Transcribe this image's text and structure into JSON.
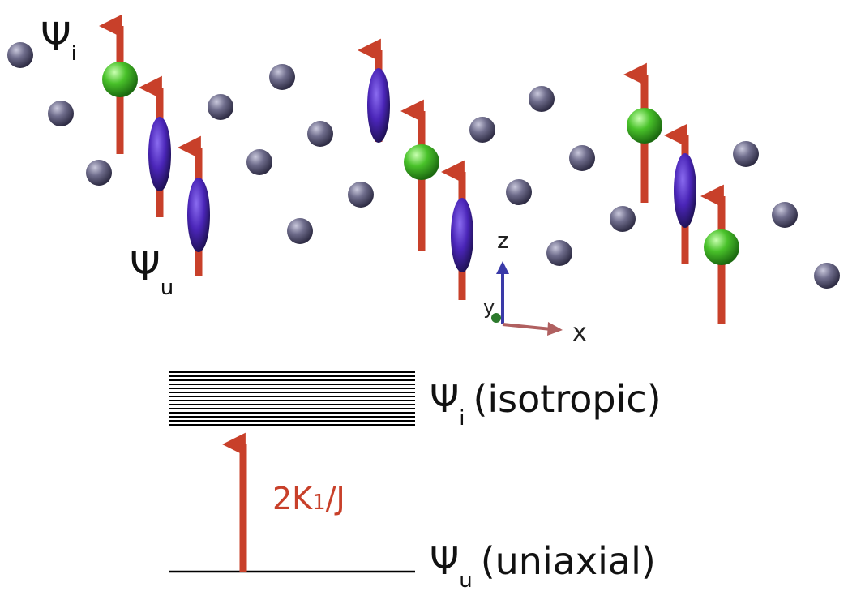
{
  "lattice_labels": [
    {
      "symbol": "Ψ",
      "subscript": "i"
    },
    {
      "symbol": "Ψ",
      "subscript": "u"
    }
  ],
  "axes": {
    "z": "z",
    "y": "y",
    "x": "x"
  },
  "levels": [
    {
      "symbol": "Ψ",
      "subscript": "i",
      "description": "(isotropic)"
    },
    {
      "symbol": "Ψ",
      "subscript": "u",
      "description": "(uniaxial)"
    }
  ],
  "transition": {
    "text": "2K",
    "subscript": "1",
    "suffix": "/J"
  }
}
